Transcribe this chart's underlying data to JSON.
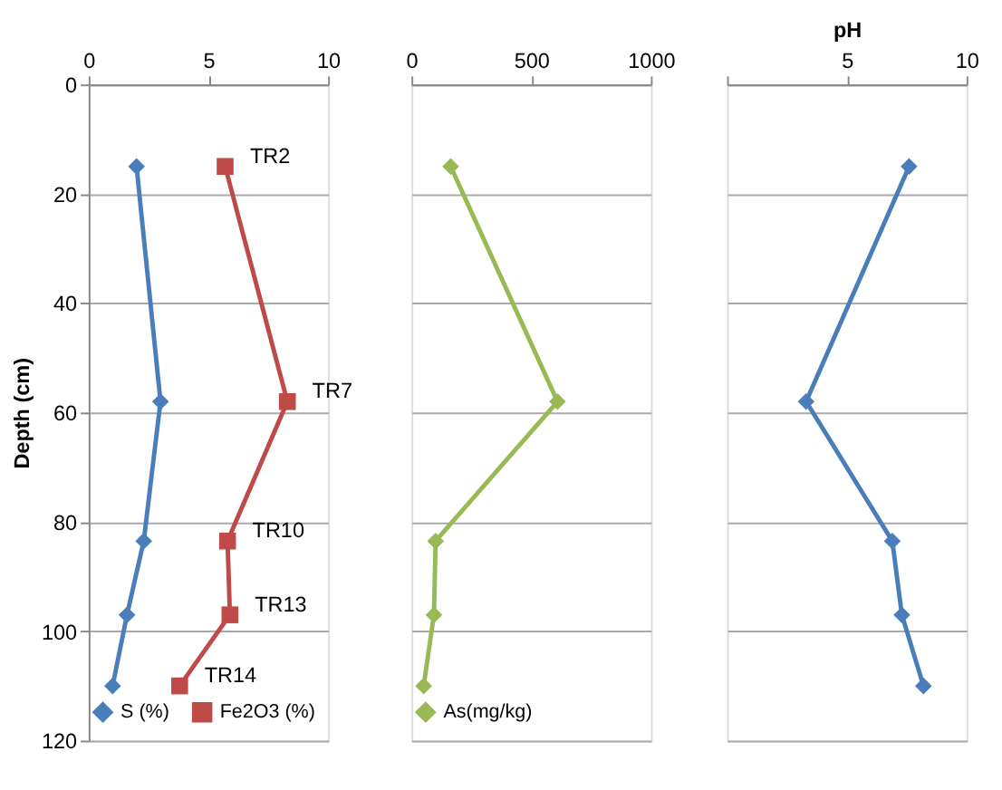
{
  "chart_data": [
    {
      "type": "line",
      "ylabel": "Depth (cm)",
      "xlim": [
        0,
        10
      ],
      "xticks": [
        0,
        5,
        10
      ],
      "ylim": [
        120,
        0
      ],
      "yticks": [
        0,
        20,
        40,
        60,
        80,
        100,
        120
      ],
      "grid": "y",
      "legend": "bottom",
      "line_style": "solid",
      "series": [
        {
          "name": "S (%)",
          "color": "#4a7ebb",
          "marker": "diamond",
          "x": [
            2.0,
            3.0,
            2.3,
            1.6,
            1.0
          ],
          "values": [
            15,
            58,
            83.5,
            97,
            110
          ]
        },
        {
          "name": "Fe2O3 (%)",
          "color": "#be4b48",
          "marker": "square",
          "x": [
            5.7,
            8.3,
            5.8,
            5.9,
            3.8
          ],
          "values": [
            15,
            58,
            83.5,
            97,
            110
          ]
        }
      ],
      "annotations": [
        {
          "text": "TR2",
          "x": 5.7,
          "y": 15
        },
        {
          "text": "TR7",
          "x": 8.3,
          "y": 58
        },
        {
          "text": "TR10",
          "x": 5.8,
          "y": 83.5
        },
        {
          "text": "TR13",
          "x": 5.9,
          "y": 97
        },
        {
          "text": "TR14",
          "x": 3.8,
          "y": 110
        }
      ]
    },
    {
      "type": "line",
      "xlim": [
        0,
        1000
      ],
      "xticks": [
        0,
        500,
        1000
      ],
      "ylim": [
        120,
        0
      ],
      "yticks": [
        0,
        20,
        40,
        60,
        80,
        100,
        120
      ],
      "tick_labels": "x",
      "grid": "y",
      "legend": "bottom",
      "line_style": "solid",
      "series": [
        {
          "name": "As(mg/kg)",
          "color": "#98b954",
          "marker": "diamond",
          "x": [
            164,
            610,
            101,
            94,
            51
          ],
          "values": [
            15,
            58,
            83.5,
            97,
            110
          ]
        }
      ]
    },
    {
      "type": "line",
      "xlabel": "pH",
      "xlim": [
        0,
        10
      ],
      "xticks": [
        {
          "value": 0,
          "label": null
        },
        5,
        10
      ],
      "ylim": [
        120,
        0
      ],
      "yticks": [
        0,
        20,
        40,
        60,
        80,
        100,
        120
      ],
      "tick_labels": "x",
      "grid": "y",
      "line_style": "solid",
      "series": [
        {
          "color": "#4a7ebb",
          "marker": "diamond",
          "x": [
            7.6,
            3.3,
            6.9,
            7.3,
            8.2
          ],
          "values": [
            15,
            58,
            83.5,
            97,
            110
          ]
        }
      ]
    }
  ]
}
